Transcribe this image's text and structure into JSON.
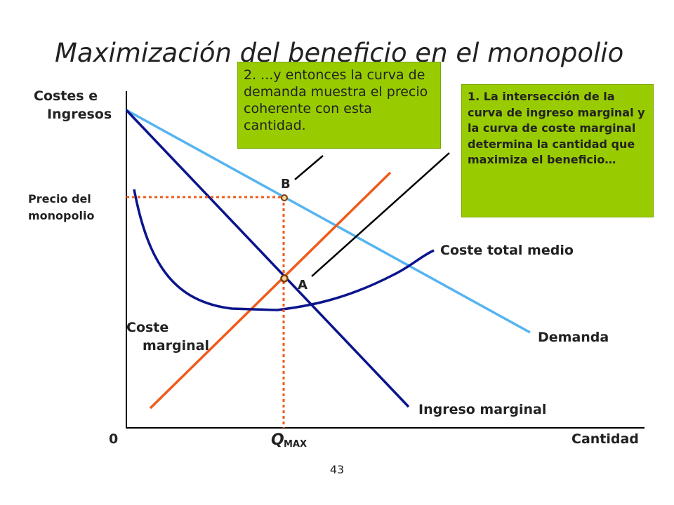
{
  "title": "Maximización del beneficio en el monopolio",
  "axes": {
    "y_label_line1": "Costes e",
    "y_label_line2": "Ingresos",
    "x_label": "Cantidad",
    "origin": "0",
    "q_max_main": "Q",
    "q_max_sub": "MAX",
    "monopoly_price_line1": "Precio del",
    "monopoly_price_line2": "monopolio"
  },
  "curves": {
    "demand": "Demanda",
    "marginal_revenue": "Ingreso marginal",
    "marginal_cost_line1": "Coste",
    "marginal_cost_line2": "marginal",
    "average_total_cost": "Coste total medio"
  },
  "points": {
    "a": "A",
    "b": "B"
  },
  "callouts": {
    "step1": "1. La intersección de la curva de ingreso marginal y la curva de coste marginal determina la cantidad que maximiza el beneficio…",
    "step2": "2. ...y entonces la curva de demanda muestra el precio coherente con esta cantidad."
  },
  "colors": {
    "demand": "#55b4f0",
    "marginal_revenue": "#0a148c",
    "marginal_cost": "#f05a19",
    "average_total_cost": "#0a148c",
    "guide_lines": "#f05a19",
    "callout_bg": "#99cc00"
  },
  "page_number": "43"
}
